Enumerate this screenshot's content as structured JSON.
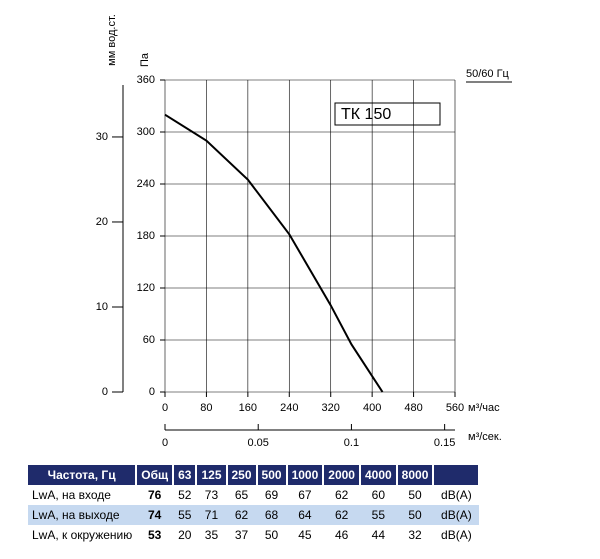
{
  "chart_data": {
    "type": "line",
    "x_label": "м³/час",
    "x2_label": "м³/сек.",
    "y_label": "Па",
    "y2_label": "мм вод.ст.",
    "legend": "50/60 Гц",
    "annotation": "ТК 150",
    "x": [
      0,
      80,
      160,
      240,
      320,
      360,
      420
    ],
    "series": [
      {
        "color": "#000000",
        "values": [
          320,
          290,
          245,
          182,
          100,
          55,
          0
        ]
      }
    ],
    "xlim": [
      0,
      560
    ],
    "xticks": [
      0,
      80,
      160,
      240,
      320,
      400,
      480,
      560
    ],
    "x2lim": [
      0,
      0.15556
    ],
    "x2ticks": [
      0,
      0.05,
      0.1,
      0.15
    ],
    "ylim": [
      0,
      360
    ],
    "yticks": [
      0,
      60,
      120,
      180,
      240,
      300,
      360
    ],
    "y2lim": [
      0,
      36.7
    ],
    "y2ticks": [
      0,
      10,
      20,
      30
    ],
    "grid": true
  },
  "table": {
    "header": [
      "Частота, Гц",
      "Общ",
      63,
      125,
      250,
      500,
      1000,
      2000,
      4000,
      8000
    ],
    "rows": [
      [
        "LwA, на входе",
        76,
        52,
        73,
        65,
        69,
        67,
        62,
        60,
        50,
        "dB(A)"
      ],
      [
        "LwA, на выходе",
        74,
        55,
        71,
        62,
        68,
        64,
        62,
        55,
        50,
        "dB(A)"
      ],
      [
        "LwA, к окружению",
        53,
        20,
        35,
        37,
        50,
        45,
        46,
        44,
        32,
        "dB(A)"
      ]
    ]
  }
}
